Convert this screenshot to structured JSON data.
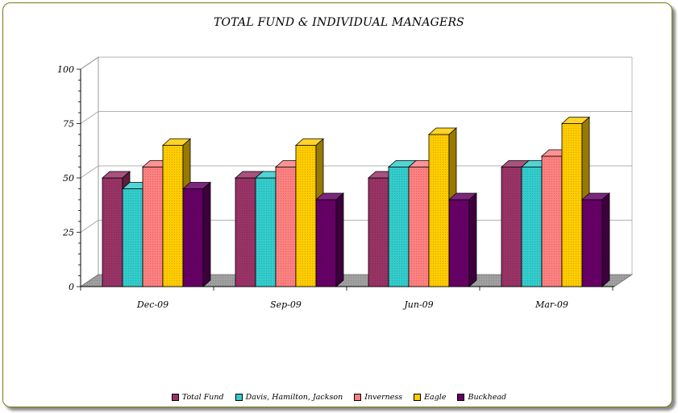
{
  "chart_data": {
    "type": "bar",
    "title": "TOTAL FUND & INDIVIDUAL MANAGERS",
    "categories": [
      "Dec-09",
      "Sep-09",
      "Jun-09",
      "Mar-09"
    ],
    "series": [
      {
        "name": "Total Fund",
        "color": "#993366",
        "values": [
          50,
          50,
          50,
          55
        ]
      },
      {
        "name": "Davis, Hamilton, Jackson",
        "color": "#33CCCC",
        "values": [
          45,
          50,
          55,
          55
        ]
      },
      {
        "name": "Inverness",
        "color": "#FF8080",
        "values": [
          55,
          55,
          55,
          60
        ]
      },
      {
        "name": "Eagle",
        "color": "#FFCC00",
        "values": [
          65,
          65,
          70,
          75
        ]
      },
      {
        "name": "Buckhead",
        "color": "#660066",
        "values": [
          45,
          40,
          40,
          40
        ]
      }
    ],
    "yticks": [
      0,
      25,
      50,
      75,
      100
    ],
    "ylim": [
      0,
      100
    ],
    "grid": true,
    "legend_position": "bottom"
  }
}
